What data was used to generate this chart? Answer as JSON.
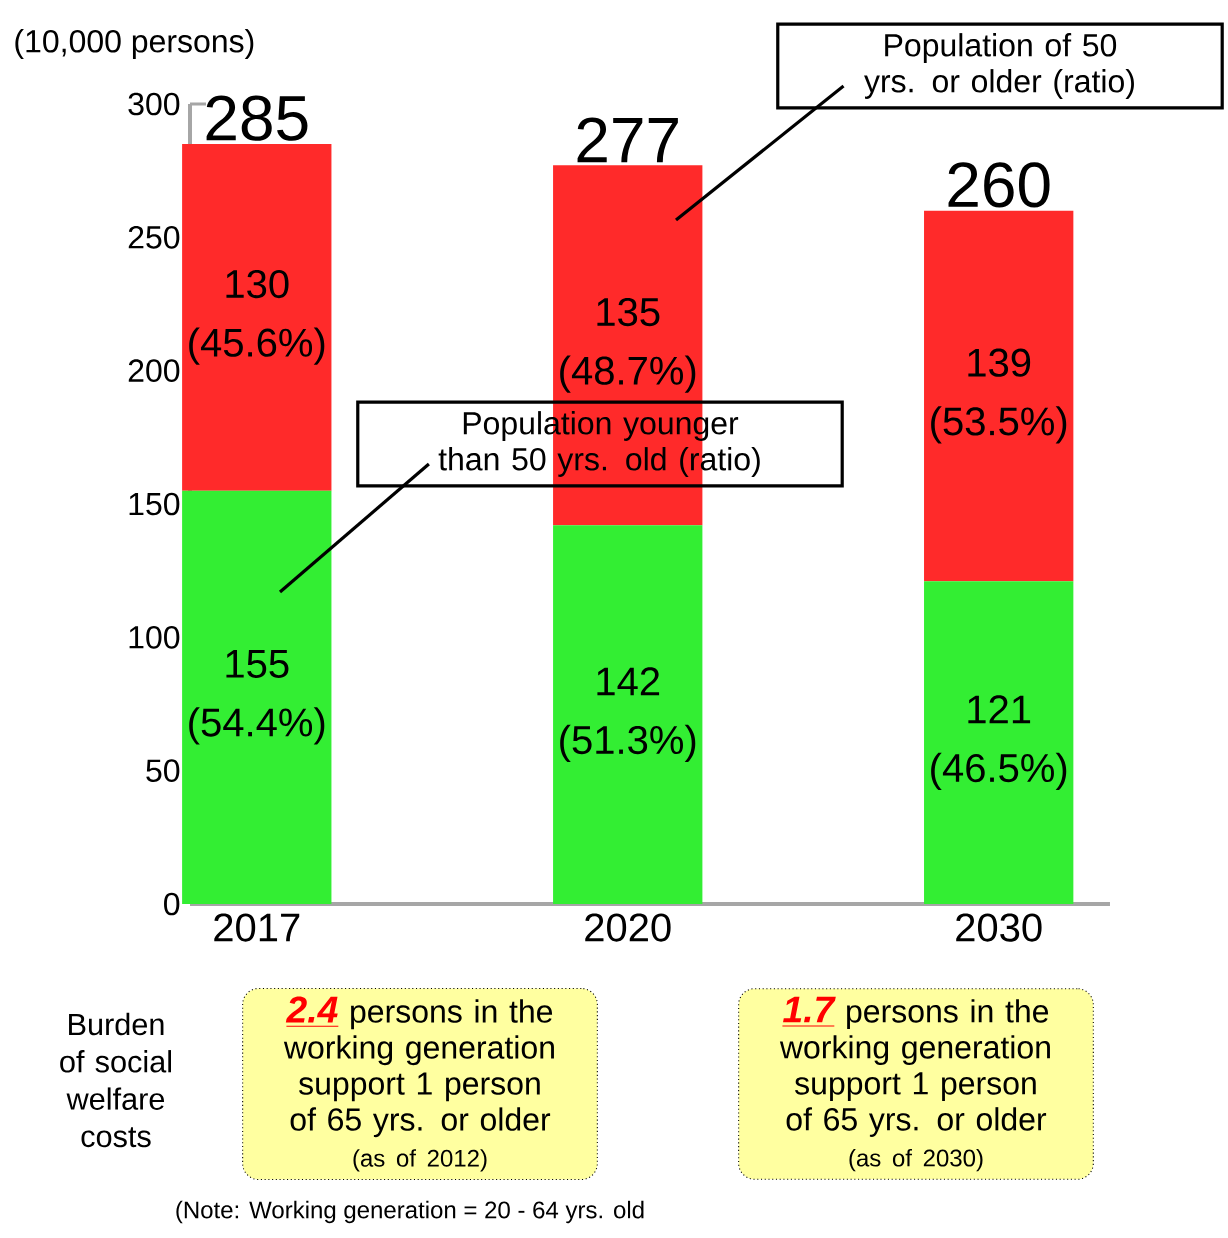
{
  "chart_data": {
    "type": "bar",
    "stacked": true,
    "categories": [
      "2017",
      "2020",
      "2030"
    ],
    "ylabel": "(10,000 persons)",
    "ylim": [
      0,
      300
    ],
    "yticks": [
      0,
      50,
      100,
      150,
      200,
      250,
      300
    ],
    "series": [
      {
        "name": "Population younger than 50 yrs. old (ratio)",
        "color": "#33ee33",
        "values": [
          155,
          142,
          121
        ],
        "value_labels": [
          "155 (54.4%)",
          "142 (51.3%)",
          "121 (46.5%)"
        ]
      },
      {
        "name": "Population of 50 yrs. or older (ratio)",
        "color": "#ff2a2a",
        "values": [
          130,
          135,
          139
        ],
        "value_labels": [
          "130 (45.6%)",
          "135 (48.7%)",
          "139 (53.5%)"
        ]
      }
    ],
    "totals": [
      "285",
      "277",
      "260"
    ],
    "annotations": [
      "Burden of social welfare costs",
      "2.4",
      "persons in the working generation support 1 person of 65 yrs. or older",
      "(as of 2012)",
      "1.7",
      "persons in the working generation support 1 person of 65 yrs. or older",
      "(as of 2030)",
      "(Note: Working generation = 20 - 64 yrs. old"
    ]
  }
}
